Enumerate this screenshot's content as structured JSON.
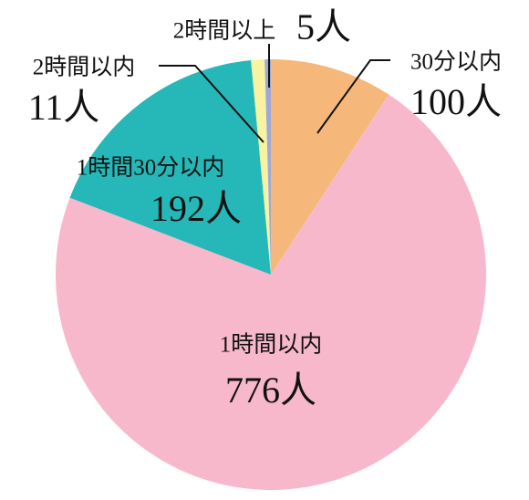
{
  "chart_data": {
    "type": "pie",
    "categories": [
      "30分以内",
      "1時間以内",
      "1時間30分以内",
      "2時間以内",
      "2時間以上"
    ],
    "values": [
      100,
      776,
      192,
      11,
      5
    ],
    "value_labels": [
      "100人",
      "776人",
      "192人",
      "11人",
      "5人"
    ],
    "colors": [
      "#f6b87a",
      "#f8b8cc",
      "#26b8b8",
      "#f7f3a0",
      "#a0a8d8"
    ]
  }
}
